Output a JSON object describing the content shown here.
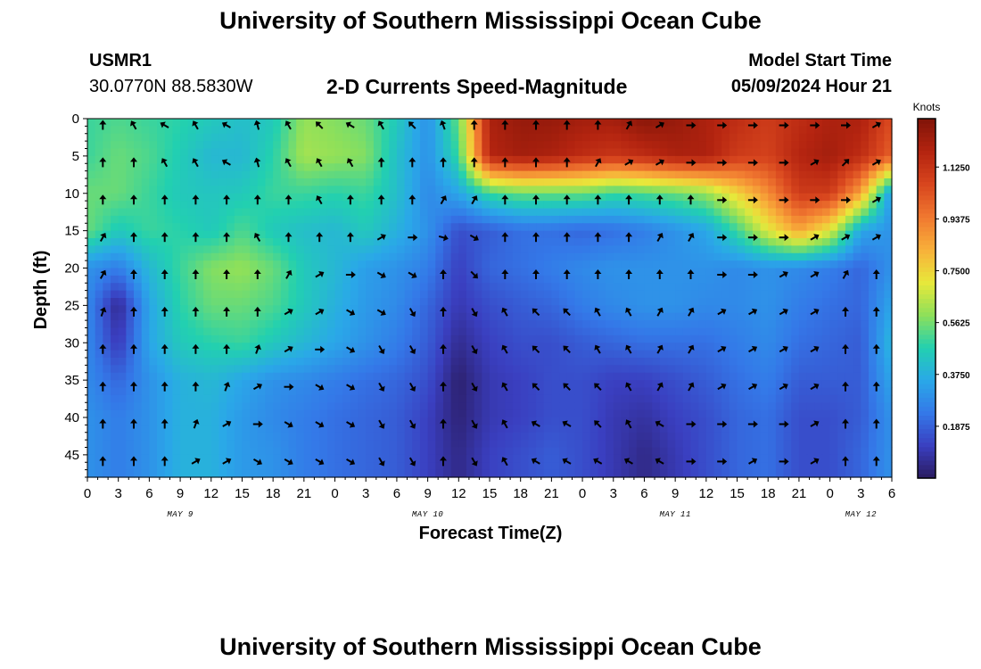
{
  "page": {
    "title": "University of Southern Mississippi Ocean Cube",
    "footer_title": "University of Southern Mississippi Ocean Cube",
    "station_id": "USMR1",
    "station_coords": "30.0770N  88.5830W",
    "chart_heading": "2-D Currents Speed-Magnitude",
    "model_start_label": "Model Start Time",
    "model_start_value": "05/09/2024 Hour 21"
  },
  "chart_data": {
    "type": "heatmap",
    "title": "2-D Currents Speed-Magnitude",
    "xlabel": "Forecast Time(Z)",
    "ylabel": "Depth (ft)",
    "x_hours": [
      0,
      3,
      6,
      9,
      12,
      15,
      18,
      21,
      24,
      27,
      30,
      33,
      36,
      39,
      42,
      45,
      48,
      51,
      54,
      57,
      60,
      63,
      66,
      69,
      72,
      75,
      78
    ],
    "x_tick_labels": [
      "0",
      "3",
      "6",
      "9",
      "12",
      "15",
      "18",
      "21",
      "0",
      "3",
      "6",
      "9",
      "12",
      "15",
      "18",
      "21",
      "0",
      "3",
      "6",
      "9",
      "12",
      "15",
      "18",
      "21",
      "0",
      "3",
      "6"
    ],
    "date_labels": [
      {
        "label": "MAY 9",
        "hour": 9
      },
      {
        "label": "MAY 10",
        "hour": 33
      },
      {
        "label": "MAY 11",
        "hour": 57
      },
      {
        "label": "MAY 12",
        "hour": 75
      }
    ],
    "depths_ft": [
      0,
      5,
      10,
      15,
      20,
      25,
      30,
      35,
      40,
      45
    ],
    "y_tick_labels": [
      "0",
      "5",
      "10",
      "15",
      "20",
      "25",
      "30",
      "35",
      "40",
      "45"
    ],
    "ylim": [
      0,
      48
    ],
    "xlim": [
      0,
      78
    ],
    "colorbar": {
      "label": "Knots",
      "ticks": [
        "0.1875",
        "0.3750",
        "0.5625",
        "0.7500",
        "0.9375",
        "1.1250"
      ],
      "tick_values": [
        0.1875,
        0.375,
        0.5625,
        0.75,
        0.9375,
        1.125
      ],
      "range": [
        0,
        1.3
      ],
      "colors": [
        "#2a1a5e",
        "#3a3fc0",
        "#3478e8",
        "#2aa8e8",
        "#22d0b0",
        "#8ee05a",
        "#e8e83a",
        "#f8b03a",
        "#f07830",
        "#d8461e",
        "#b42410",
        "#801408"
      ]
    },
    "speed_knots": [
      [
        0.5,
        0.52,
        0.5,
        0.48,
        0.45,
        0.42,
        0.45,
        0.6,
        0.58,
        0.55,
        0.45,
        0.3,
        0.55,
        1.2,
        1.25,
        1.25,
        1.22,
        1.22,
        1.28,
        1.25,
        1.2,
        1.15,
        1.1,
        1.15,
        1.2,
        1.2,
        1.05
      ],
      [
        0.5,
        0.55,
        0.52,
        0.46,
        0.4,
        0.4,
        0.48,
        0.62,
        0.6,
        0.58,
        0.42,
        0.3,
        0.5,
        1.18,
        1.22,
        1.2,
        1.15,
        1.12,
        1.15,
        1.2,
        1.2,
        1.1,
        1.08,
        1.18,
        1.22,
        1.15,
        1.0
      ],
      [
        0.55,
        0.55,
        0.5,
        0.45,
        0.44,
        0.45,
        0.5,
        0.5,
        0.48,
        0.5,
        0.42,
        0.28,
        0.35,
        0.5,
        0.55,
        0.55,
        0.55,
        0.5,
        0.52,
        0.55,
        0.6,
        0.75,
        0.9,
        1.1,
        1.1,
        0.85,
        0.3
      ],
      [
        0.55,
        0.45,
        0.5,
        0.48,
        0.45,
        0.52,
        0.45,
        0.42,
        0.4,
        0.45,
        0.38,
        0.3,
        0.15,
        0.18,
        0.22,
        0.22,
        0.2,
        0.22,
        0.25,
        0.3,
        0.35,
        0.5,
        0.7,
        0.85,
        0.7,
        0.35,
        0.3
      ],
      [
        0.3,
        0.25,
        0.4,
        0.5,
        0.58,
        0.6,
        0.55,
        0.45,
        0.4,
        0.33,
        0.3,
        0.25,
        0.12,
        0.2,
        0.22,
        0.25,
        0.28,
        0.3,
        0.3,
        0.3,
        0.3,
        0.28,
        0.3,
        0.28,
        0.25,
        0.2,
        0.3
      ],
      [
        0.28,
        0.05,
        0.35,
        0.48,
        0.55,
        0.55,
        0.52,
        0.45,
        0.38,
        0.32,
        0.28,
        0.2,
        0.1,
        0.15,
        0.18,
        0.2,
        0.25,
        0.28,
        0.3,
        0.3,
        0.28,
        0.28,
        0.3,
        0.25,
        0.22,
        0.2,
        0.35
      ],
      [
        0.28,
        0.1,
        0.35,
        0.45,
        0.48,
        0.5,
        0.45,
        0.4,
        0.35,
        0.3,
        0.25,
        0.18,
        0.06,
        0.12,
        0.15,
        0.15,
        0.18,
        0.2,
        0.22,
        0.22,
        0.22,
        0.25,
        0.28,
        0.22,
        0.2,
        0.18,
        0.4
      ],
      [
        0.28,
        0.2,
        0.3,
        0.38,
        0.4,
        0.35,
        0.3,
        0.28,
        0.25,
        0.22,
        0.2,
        0.15,
        0.02,
        0.1,
        0.12,
        0.15,
        0.15,
        0.12,
        0.12,
        0.15,
        0.18,
        0.22,
        0.25,
        0.18,
        0.18,
        0.18,
        0.35
      ],
      [
        0.3,
        0.25,
        0.3,
        0.38,
        0.38,
        0.32,
        0.28,
        0.25,
        0.22,
        0.2,
        0.18,
        0.12,
        0.03,
        0.1,
        0.12,
        0.15,
        0.15,
        0.1,
        0.08,
        0.12,
        0.15,
        0.2,
        0.22,
        0.15,
        0.15,
        0.18,
        0.3
      ],
      [
        0.3,
        0.25,
        0.3,
        0.38,
        0.38,
        0.32,
        0.3,
        0.25,
        0.22,
        0.2,
        0.18,
        0.12,
        0.05,
        0.12,
        0.15,
        0.18,
        0.15,
        0.1,
        0.05,
        0.1,
        0.15,
        0.2,
        0.22,
        0.15,
        0.15,
        0.2,
        0.3
      ]
    ],
    "arrow_dir_deg": [
      [
        180,
        150,
        120,
        150,
        120,
        165,
        150,
        135,
        120,
        150,
        135,
        160,
        180,
        180,
        180,
        180,
        180,
        210,
        240,
        270,
        270,
        270,
        270,
        270,
        270,
        240,
        330
      ],
      [
        180,
        180,
        150,
        150,
        120,
        165,
        150,
        150,
        150,
        180,
        180,
        180,
        180,
        180,
        180,
        180,
        210,
        240,
        240,
        270,
        270,
        270,
        270,
        240,
        225,
        240,
        330
      ],
      [
        180,
        180,
        180,
        180,
        180,
        180,
        180,
        150,
        180,
        180,
        180,
        210,
        210,
        180,
        180,
        180,
        180,
        180,
        180,
        180,
        270,
        270,
        270,
        270,
        270,
        240,
        330
      ],
      [
        210,
        180,
        180,
        180,
        180,
        150,
        180,
        180,
        180,
        240,
        270,
        285,
        300,
        180,
        180,
        180,
        180,
        180,
        210,
        210,
        270,
        270,
        270,
        240,
        240,
        240,
        240
      ],
      [
        210,
        180,
        180,
        180,
        180,
        180,
        210,
        240,
        270,
        300,
        300,
        180,
        315,
        180,
        180,
        180,
        180,
        180,
        180,
        180,
        270,
        270,
        240,
        240,
        210,
        180,
        240
      ],
      [
        200,
        180,
        180,
        180,
        180,
        180,
        240,
        240,
        300,
        300,
        330,
        180,
        330,
        150,
        135,
        135,
        150,
        150,
        210,
        210,
        240,
        240,
        240,
        240,
        180,
        180,
        240
      ],
      [
        180,
        180,
        180,
        180,
        180,
        200,
        240,
        270,
        300,
        330,
        330,
        180,
        330,
        150,
        135,
        135,
        150,
        150,
        210,
        210,
        240,
        240,
        240,
        240,
        180,
        180,
        240
      ],
      [
        180,
        180,
        180,
        180,
        200,
        240,
        270,
        300,
        300,
        330,
        330,
        180,
        330,
        150,
        135,
        135,
        135,
        150,
        210,
        210,
        240,
        240,
        240,
        240,
        180,
        180,
        240
      ],
      [
        180,
        180,
        180,
        200,
        240,
        270,
        300,
        300,
        300,
        330,
        330,
        180,
        330,
        150,
        120,
        120,
        135,
        150,
        120,
        270,
        270,
        270,
        270,
        240,
        180,
        180,
        240
      ],
      [
        180,
        180,
        180,
        240,
        240,
        300,
        300,
        300,
        300,
        330,
        330,
        180,
        330,
        150,
        120,
        120,
        120,
        120,
        120,
        270,
        270,
        240,
        270,
        240,
        180,
        180,
        240
      ]
    ]
  }
}
